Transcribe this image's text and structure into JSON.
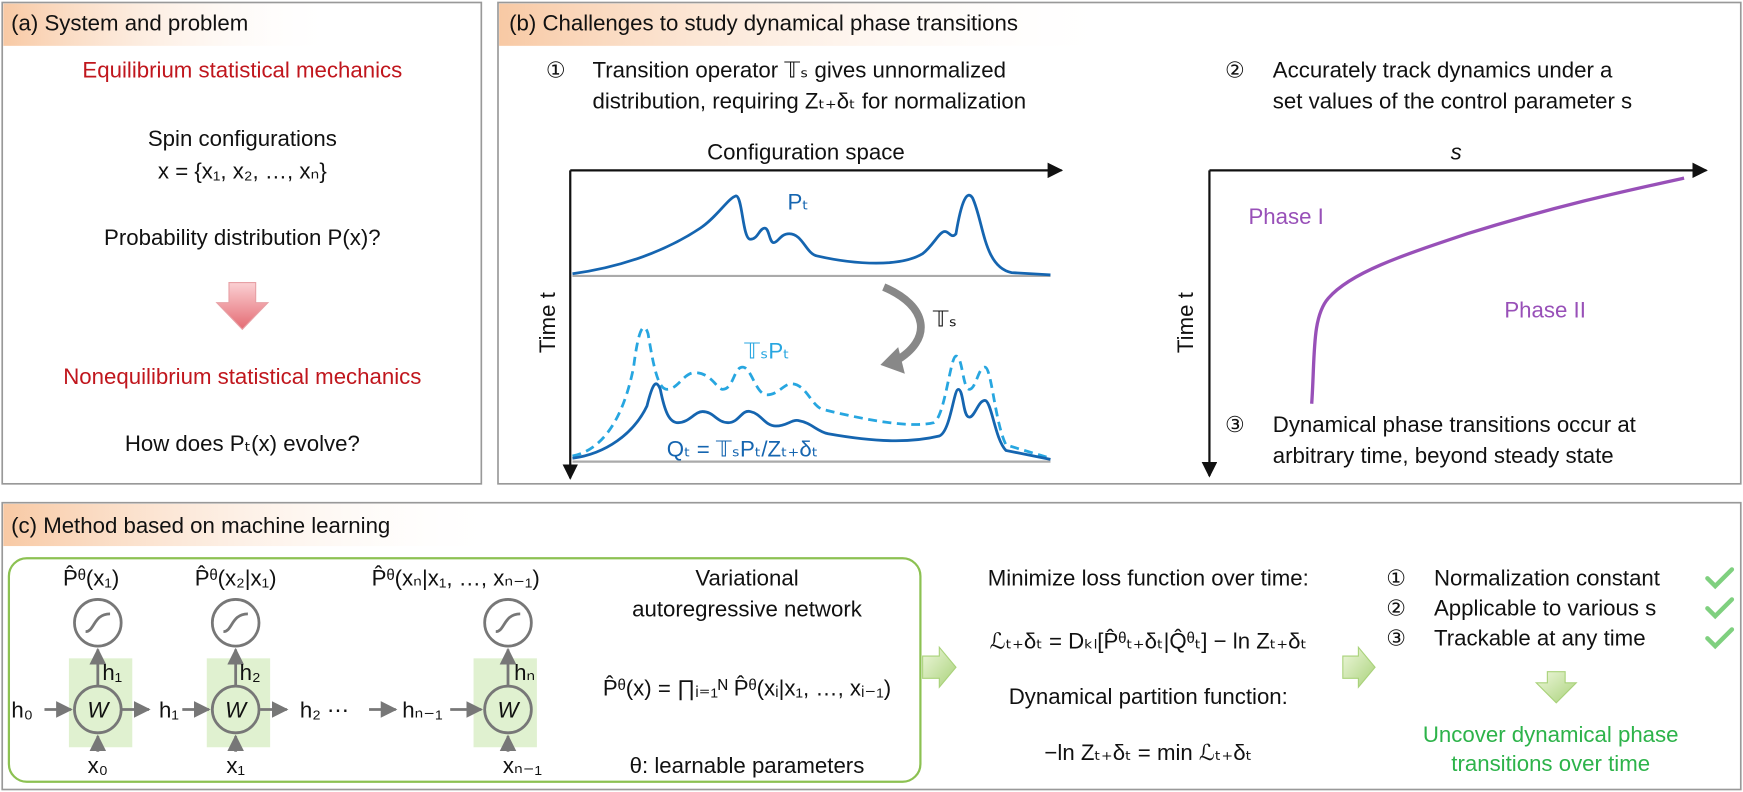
{
  "panel_a": {
    "title": "(a) System and problem",
    "equilibrium": "Equilibrium statistical mechanics",
    "spin": "Spin configurations",
    "spin_formula": "x = {x₁, x₂, …, xₙ}",
    "question": "Probability distribution P(x)?",
    "nonequilibrium": "Nonequilibrium statistical mechanics",
    "evolve": "How does Pₜ(x) evolve?"
  },
  "panel_b": {
    "title": "(b) Challenges to study dynamical phase transitions",
    "challenges": [
      {
        "number": "①",
        "lines": [
          "Transition operator 𝕋ₛ gives unnormalized",
          "distribution, requiring Zₜ₊δₜ for normalization"
        ]
      },
      {
        "number": "②",
        "lines": [
          "Accurately track dynamics under a",
          "set values of the control parameter s"
        ]
      },
      {
        "number": "③",
        "lines": [
          "Dynamical phase transitions occur at",
          "arbitrary time, beyond steady state"
        ]
      }
    ],
    "left_plot": {
      "x_label": "Configuration space",
      "y_label": "Time t",
      "p_label": "Pₜ",
      "operator_label": "𝕋ₛ",
      "tp_label": "𝕋ₛPₜ",
      "q_label": "Qₜ = 𝕋ₛPₜ/Zₜ₊δₜ"
    },
    "right_plot": {
      "x_label": "s",
      "y_label": "Time t",
      "phase1": "Phase I",
      "phase2": "Phase II"
    }
  },
  "panel_c": {
    "title": "(c) Method based on machine learning",
    "outputs": [
      "P̂ᶿ(x₁)",
      "P̂ᶿ(x₂|x₁)",
      "P̂ᶿ(xₙ|x₁, …, xₙ₋₁)"
    ],
    "hidden_in": [
      "h₀",
      "h₁",
      "h₂ ⋯",
      "hₙ₋₁"
    ],
    "hidden_out": [
      "h₁",
      "h₂",
      "hₙ"
    ],
    "weights": [
      "W",
      "W",
      "W"
    ],
    "inputs": [
      "x₀",
      "x₁",
      "xₙ₋₁"
    ],
    "network_title": [
      "Variational",
      "autoregressive network"
    ],
    "network_formula": "P̂ᶿ(x) = ∏ᵢ₌₁ᴺ P̂ᶿ(xᵢ|x₁, …, xᵢ₋₁)",
    "parameters": "θ: learnable parameters",
    "loss_title": "Minimize loss function over time:",
    "loss_formula": "ℒₜ₊δₜ = Dₖₗ[P̂ᶿₜ₊δₜ|Q̂ᶿₜ] − ln Zₜ₊δₜ",
    "partition_title": "Dynamical partition function:",
    "partition_formula": "−ln Zₜ₊δₜ = min ℒₜ₊δₜ",
    "advantages": [
      {
        "number": "①",
        "text": "Normalization constant"
      },
      {
        "number": "②",
        "text": "Applicable to various s"
      },
      {
        "number": "③",
        "text": "Trackable at any time"
      }
    ],
    "conclusion": [
      "Uncover dynamical phase",
      "transitions over time"
    ]
  }
}
